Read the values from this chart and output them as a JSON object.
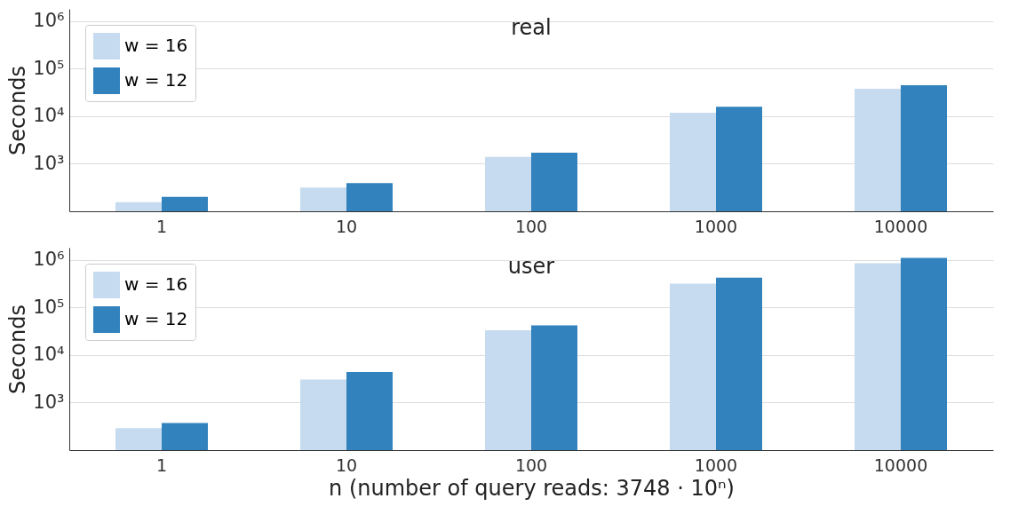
{
  "chart_data": [
    {
      "type": "bar",
      "title": "real",
      "ylabel": "Seconds",
      "categories": [
        "1",
        "10",
        "100",
        "1000",
        "10000"
      ],
      "series": [
        {
          "name": "w = 16",
          "color": "#c6dbef",
          "values": [
            155,
            316,
            1390,
            11800,
            37800
          ]
        },
        {
          "name": "w = 12",
          "color": "#3182bd",
          "values": [
            200,
            390,
            1710,
            15800,
            44500
          ]
        }
      ],
      "log": true,
      "ylim": [
        100,
        1800000
      ],
      "yticks": [
        {
          "value": 1000,
          "label": "10³"
        },
        {
          "value": 10000,
          "label": "10⁴"
        },
        {
          "value": 100000,
          "label": "10⁵"
        },
        {
          "value": 1000000,
          "label": "10⁶"
        }
      ],
      "grid": "y",
      "legend": "top left"
    },
    {
      "type": "bar",
      "title": "user",
      "ylabel": "Seconds",
      "xlabel": "n (number of query reads: 3748 · 10ⁿ)",
      "categories": [
        "1",
        "10",
        "100",
        "1000",
        "10000"
      ],
      "series": [
        {
          "name": "w = 16",
          "color": "#c6dbef",
          "values": [
            290,
            3040,
            33000,
            316000,
            850000
          ]
        },
        {
          "name": "w = 12",
          "color": "#3182bd",
          "values": [
            372,
            4400,
            42000,
            420000,
            1100000
          ]
        }
      ],
      "log": true,
      "ylim": [
        100,
        1800000
      ],
      "yticks": [
        {
          "value": 1000,
          "label": "10³"
        },
        {
          "value": 10000,
          "label": "10⁴"
        },
        {
          "value": 100000,
          "label": "10⁵"
        },
        {
          "value": 1000000,
          "label": "10⁶"
        }
      ],
      "grid": "y",
      "legend": "top left"
    }
  ]
}
